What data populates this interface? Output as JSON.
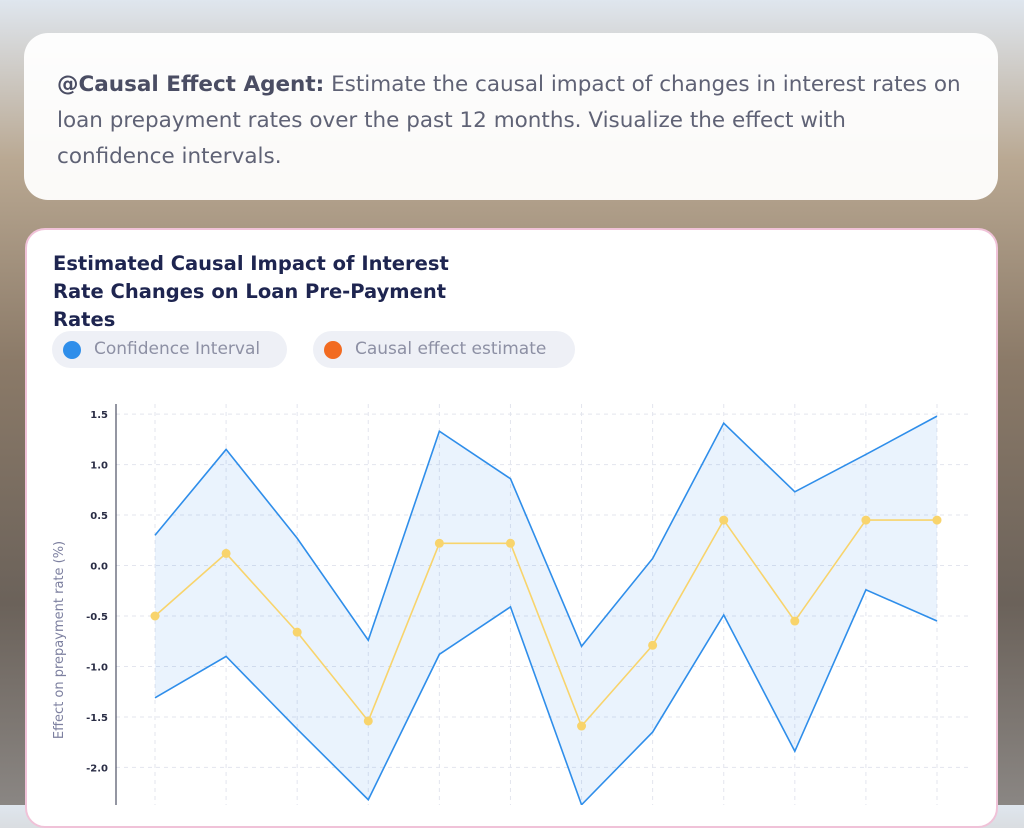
{
  "prompt": {
    "agent": "@Causal Effect Agent:",
    "text": "Estimate the causal impact of changes in interest rates on loan prepayment rates over the past 12 months. Visualize the effect with confidence intervals."
  },
  "chart_data": {
    "type": "line",
    "title": "Estimated Causal Impact of Interest Rate Changes on Loan Pre-Payment Rates",
    "y_label": "Effect on prepayment rate (%)",
    "categories": [
      null,
      null,
      null,
      null,
      null,
      null,
      null,
      null,
      null,
      null,
      null,
      null
    ],
    "series": [
      {
        "name": "Confidence Interval",
        "color": "#2f8eea",
        "upper": [
          0.3,
          1.15,
          0.27,
          -0.74,
          1.33,
          0.86,
          -0.8,
          0.07,
          1.41,
          0.73,
          1.1,
          1.48
        ],
        "lower": [
          -1.31,
          -0.9,
          -1.62,
          -2.32,
          -0.88,
          -0.41,
          -2.37,
          -1.65,
          -0.49,
          -1.84,
          -0.24,
          -0.55
        ]
      },
      {
        "name": "Causal effect estimate",
        "color": "#f26b21",
        "line_color": "#f8d46c",
        "values": [
          -0.5,
          0.12,
          -0.66,
          -1.54,
          0.22,
          0.22,
          -1.59,
          -0.79,
          0.45,
          -0.55,
          0.45,
          0.45
        ]
      }
    ],
    "ylim": [
      -2.4,
      1.6
    ],
    "yticks": [
      1.5,
      {
        "value": 1,
        "label": "1.0"
      },
      0.5,
      {
        "value": 0,
        "label": "0.0"
      },
      -0.5,
      {
        "value": -1,
        "label": "-1.0"
      },
      -1.5,
      {
        "value": -2,
        "label": "-2.0"
      }
    ],
    "grid": true
  }
}
